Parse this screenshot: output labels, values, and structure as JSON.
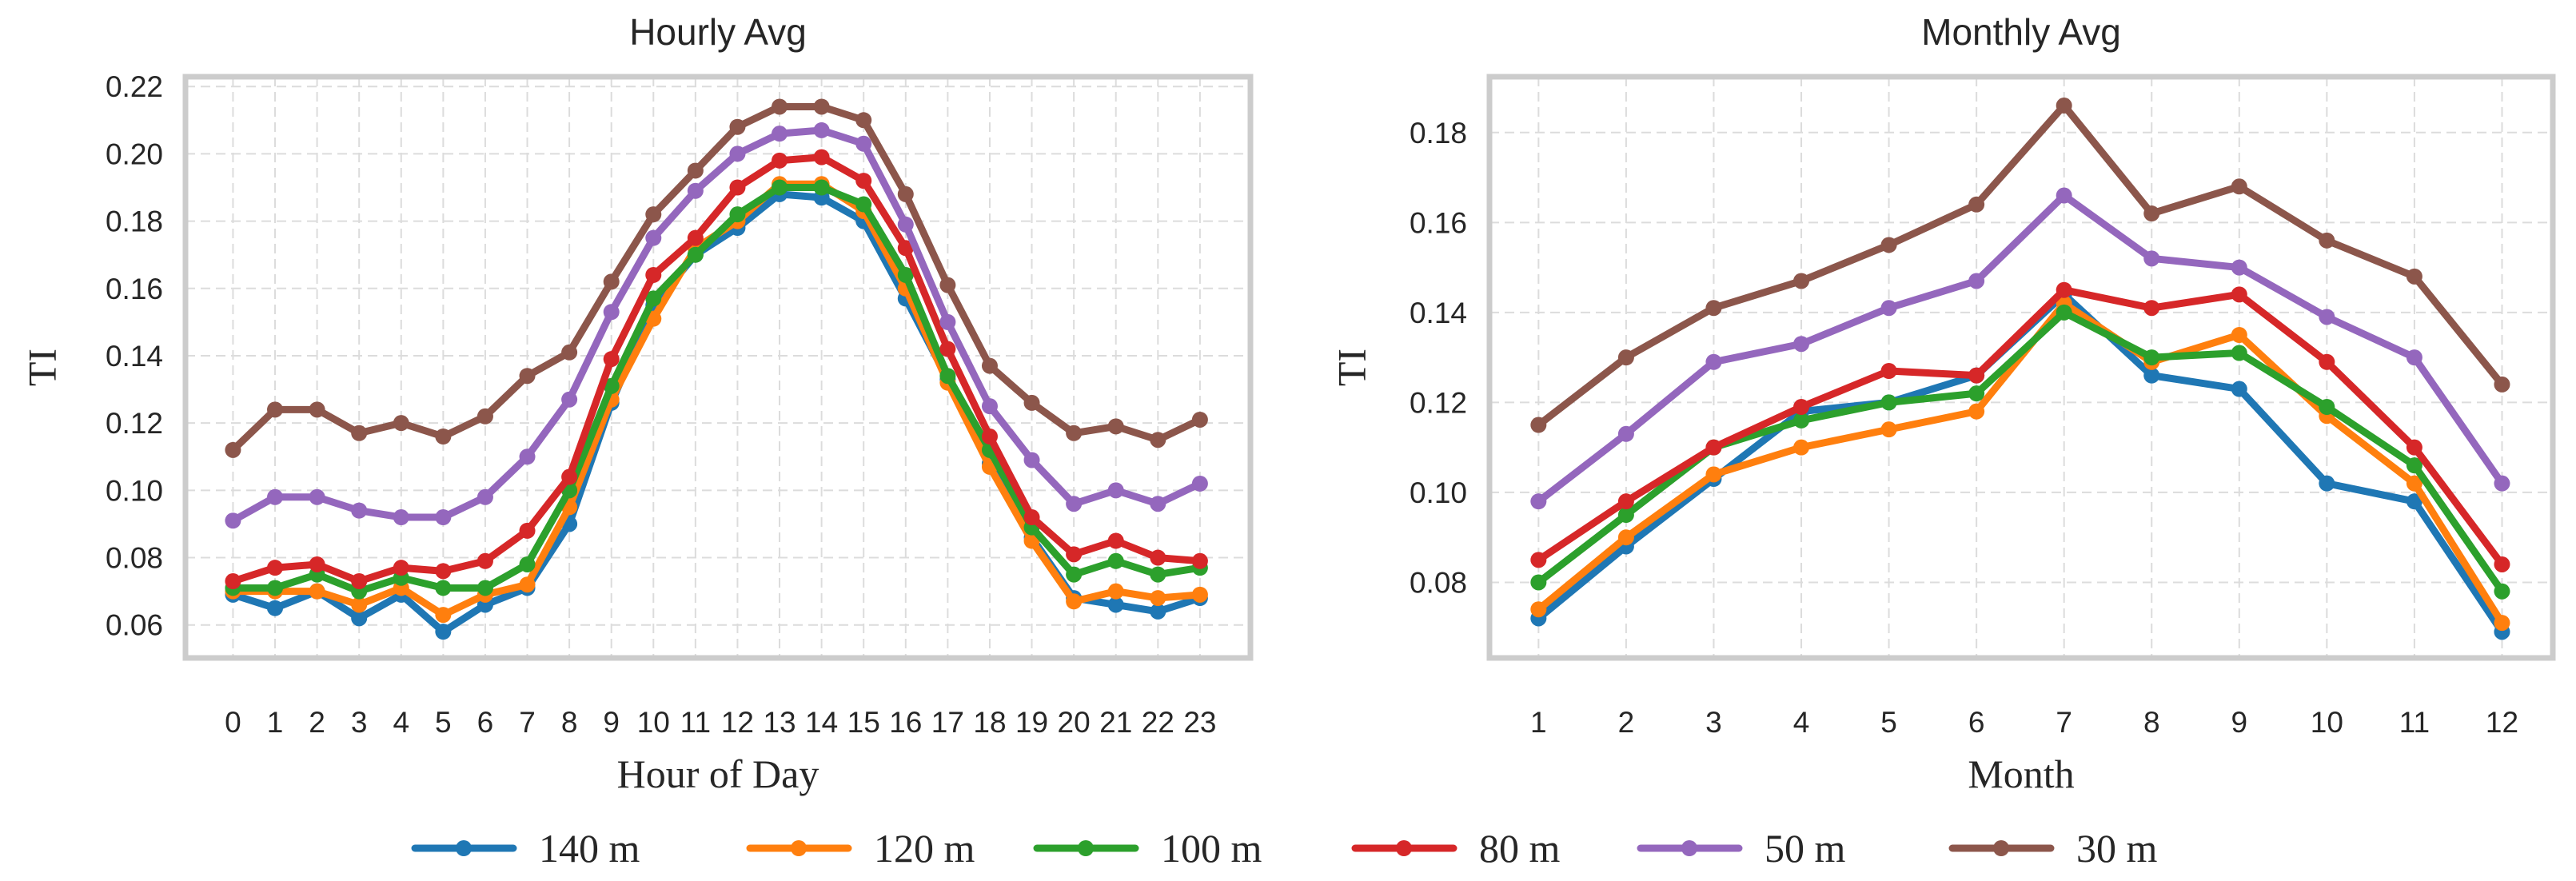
{
  "chart_data": [
    {
      "type": "line",
      "title": "Hourly Avg",
      "xlabel": "Hour of Day",
      "ylabel": "TI",
      "x": [
        0,
        1,
        2,
        3,
        4,
        5,
        6,
        7,
        8,
        9,
        10,
        11,
        12,
        13,
        14,
        15,
        16,
        17,
        18,
        19,
        20,
        21,
        22,
        23
      ],
      "xticks": [
        "0",
        "1",
        "2",
        "3",
        "4",
        "5",
        "6",
        "7",
        "8",
        "9",
        "10",
        "11",
        "12",
        "13",
        "14",
        "15",
        "16",
        "17",
        "18",
        "19",
        "20",
        "21",
        "22",
        "23"
      ],
      "xlim": [
        -1.13,
        24.2
      ],
      "ylim": [
        0.0502,
        0.2229
      ],
      "yticks": [
        0.06,
        0.08,
        0.1,
        0.12,
        0.14,
        0.16,
        0.18,
        0.2,
        0.22
      ],
      "ytick_labels": [
        "0.06",
        "0.08",
        "0.10",
        "0.12",
        "0.14",
        "0.16",
        "0.18",
        "0.20",
        "0.22"
      ],
      "grid": true,
      "series": [
        {
          "name": "140 m",
          "color": "#1f77b4",
          "values": [
            0.069,
            0.065,
            0.07,
            0.062,
            0.069,
            0.058,
            0.066,
            0.071,
            0.09,
            0.126,
            0.155,
            0.17,
            0.178,
            0.188,
            0.187,
            0.18,
            0.157,
            0.133,
            0.108,
            0.086,
            0.068,
            0.066,
            0.064,
            0.068
          ]
        },
        {
          "name": "120 m",
          "color": "#ff7f0e",
          "values": [
            0.07,
            0.07,
            0.07,
            0.066,
            0.071,
            0.063,
            0.069,
            0.072,
            0.095,
            0.127,
            0.151,
            0.172,
            0.18,
            0.191,
            0.191,
            0.183,
            0.16,
            0.132,
            0.107,
            0.085,
            0.067,
            0.07,
            0.068,
            0.069
          ]
        },
        {
          "name": "100 m",
          "color": "#2ca02c",
          "values": [
            0.071,
            0.071,
            0.075,
            0.07,
            0.074,
            0.071,
            0.071,
            0.078,
            0.1,
            0.131,
            0.157,
            0.17,
            0.182,
            0.19,
            0.19,
            0.185,
            0.164,
            0.134,
            0.112,
            0.089,
            0.075,
            0.079,
            0.075,
            0.077
          ]
        },
        {
          "name": "80 m",
          "color": "#d62728",
          "values": [
            0.073,
            0.077,
            0.078,
            0.073,
            0.077,
            0.076,
            0.079,
            0.088,
            0.104,
            0.139,
            0.164,
            0.175,
            0.19,
            0.198,
            0.199,
            0.192,
            0.172,
            0.142,
            0.116,
            0.092,
            0.081,
            0.085,
            0.08,
            0.079
          ]
        },
        {
          "name": "50 m",
          "color": "#9467bd",
          "values": [
            0.091,
            0.098,
            0.098,
            0.094,
            0.092,
            0.092,
            0.098,
            0.11,
            0.127,
            0.153,
            0.175,
            0.189,
            0.2,
            0.206,
            0.207,
            0.203,
            0.179,
            0.15,
            0.125,
            0.109,
            0.096,
            0.1,
            0.096,
            0.102
          ]
        },
        {
          "name": "30 m",
          "color": "#8c564b",
          "values": [
            0.112,
            0.124,
            0.124,
            0.117,
            0.12,
            0.116,
            0.122,
            0.134,
            0.141,
            0.162,
            0.182,
            0.195,
            0.208,
            0.214,
            0.214,
            0.21,
            0.188,
            0.161,
            0.137,
            0.126,
            0.117,
            0.119,
            0.115,
            0.121
          ]
        }
      ]
    },
    {
      "type": "line",
      "title": "Monthly Avg",
      "xlabel": "Month",
      "ylabel": "TI",
      "x": [
        1,
        2,
        3,
        4,
        5,
        6,
        7,
        8,
        9,
        10,
        11,
        12
      ],
      "xticks": [
        "1",
        "2",
        "3",
        "4",
        "5",
        "6",
        "7",
        "8",
        "9",
        "10",
        "11",
        "12"
      ],
      "xlim": [
        0.44,
        12.58
      ],
      "ylim": [
        0.0632,
        0.1924
      ],
      "yticks": [
        0.08,
        0.1,
        0.12,
        0.14,
        0.16,
        0.18
      ],
      "ytick_labels": [
        "0.08",
        "0.10",
        "0.12",
        "0.14",
        "0.16",
        "0.18"
      ],
      "grid": true,
      "series": [
        {
          "name": "140 m",
          "color": "#1f77b4",
          "values": [
            0.072,
            0.088,
            0.103,
            0.118,
            0.12,
            0.126,
            0.144,
            0.126,
            0.123,
            0.102,
            0.098,
            0.069
          ]
        },
        {
          "name": "120 m",
          "color": "#ff7f0e",
          "values": [
            0.074,
            0.09,
            0.104,
            0.11,
            0.114,
            0.118,
            0.142,
            0.129,
            0.135,
            0.117,
            0.102,
            0.071
          ]
        },
        {
          "name": "100 m",
          "color": "#2ca02c",
          "values": [
            0.08,
            0.095,
            0.11,
            0.116,
            0.12,
            0.122,
            0.14,
            0.13,
            0.131,
            0.119,
            0.106,
            0.078
          ]
        },
        {
          "name": "80 m",
          "color": "#d62728",
          "values": [
            0.085,
            0.098,
            0.11,
            0.119,
            0.127,
            0.126,
            0.145,
            0.141,
            0.144,
            0.129,
            0.11,
            0.084
          ]
        },
        {
          "name": "50 m",
          "color": "#9467bd",
          "values": [
            0.098,
            0.113,
            0.129,
            0.133,
            0.141,
            0.147,
            0.166,
            0.152,
            0.15,
            0.139,
            0.13,
            0.102
          ]
        },
        {
          "name": "30 m",
          "color": "#8c564b",
          "values": [
            0.115,
            0.13,
            0.141,
            0.147,
            0.155,
            0.164,
            0.186,
            0.162,
            0.168,
            0.156,
            0.148,
            0.124
          ]
        }
      ]
    }
  ],
  "legend": {
    "placement": "bottom-center",
    "items": [
      "140 m",
      "120 m",
      "100 m",
      "80 m",
      "50 m",
      "30 m"
    ]
  }
}
